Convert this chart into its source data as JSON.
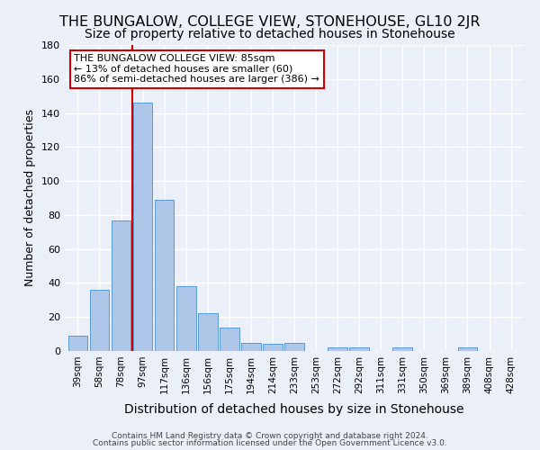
{
  "title": "THE BUNGALOW, COLLEGE VIEW, STONEHOUSE, GL10 2JR",
  "subtitle": "Size of property relative to detached houses in Stonehouse",
  "xlabel": "Distribution of detached houses by size in Stonehouse",
  "ylabel": "Number of detached properties",
  "bar_labels": [
    "39sqm",
    "58sqm",
    "78sqm",
    "97sqm",
    "117sqm",
    "136sqm",
    "156sqm",
    "175sqm",
    "194sqm",
    "214sqm",
    "233sqm",
    "253sqm",
    "272sqm",
    "292sqm",
    "311sqm",
    "331sqm",
    "350sqm",
    "369sqm",
    "389sqm",
    "408sqm",
    "428sqm"
  ],
  "bar_values": [
    9,
    36,
    77,
    146,
    89,
    38,
    22,
    14,
    5,
    4,
    5,
    0,
    2,
    2,
    0,
    2,
    0,
    0,
    2,
    0,
    0
  ],
  "bar_color": "#aec6e8",
  "bar_edgecolor": "#5b9bd5",
  "background_color": "#eaeff8",
  "grid_color": "#ffffff",
  "red_line_x": 2.5,
  "annotation_title": "THE BUNGALOW COLLEGE VIEW: 85sqm",
  "annotation_line1": "← 13% of detached houses are smaller (60)",
  "annotation_line2": "86% of semi-detached houses are larger (386) →",
  "annotation_box_color": "#ffffff",
  "annotation_border_color": "#cc0000",
  "footer_line1": "Contains HM Land Registry data © Crown copyright and database right 2024.",
  "footer_line2": "Contains public sector information licensed under the Open Government Licence v3.0.",
  "ylim": [
    0,
    180
  ],
  "title_fontsize": 11.5,
  "subtitle_fontsize": 10,
  "ylabel_fontsize": 9,
  "xlabel_fontsize": 10
}
